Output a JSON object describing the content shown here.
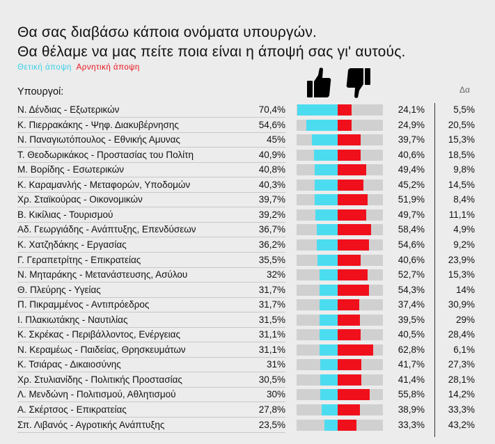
{
  "header": {
    "title_line1": "Θα σας διαβάσω κάποια ονόματα υπουργών.",
    "title_line2": "Θα θέλαμε να μας πείτε ποια είναι η άποψή σας γι' αυτούς.",
    "legend_positive": "Θετική άποψη",
    "legend_negative": "Αρνητική άποψη",
    "column_label": "Υπουργοί:",
    "delta_label": "Δα"
  },
  "colors": {
    "positive": "#4cdcf0",
    "negative": "#f0101c",
    "track": "#d0d0d0"
  },
  "icons": {
    "positive": "thumbs-up-icon",
    "negative": "thumbs-down-icon"
  },
  "chart_data": {
    "type": "bar",
    "series": [
      {
        "name": "Θετική άποψη",
        "values": [
          70.4,
          54.6,
          45,
          40.9,
          40.8,
          40.3,
          39.7,
          39.2,
          36.7,
          36.2,
          35.5,
          32,
          31.7,
          31.7,
          31.5,
          31.1,
          31.1,
          31,
          30.5,
          30,
          27.8,
          23.5
        ]
      },
      {
        "name": "Αρνητική άποψη",
        "values": [
          24.1,
          24.9,
          39.7,
          40.6,
          49.4,
          45.2,
          51.9,
          49.7,
          58.4,
          54.6,
          40.6,
          52.7,
          54.3,
          37.4,
          39.5,
          40.5,
          62.8,
          41.7,
          41.4,
          55.8,
          38.9,
          33.3
        ]
      },
      {
        "name": "Δα",
        "values": [
          5.5,
          20.5,
          15.3,
          18.5,
          9.8,
          14.5,
          8.4,
          11.1,
          4.9,
          9.2,
          23.9,
          15.3,
          14,
          30.9,
          29,
          28.4,
          6.1,
          27.3,
          28.1,
          14.2,
          33.3,
          43.2
        ]
      }
    ],
    "rows": [
      {
        "name": "Ν. Δένδιας - Εξωτερικών",
        "pos": "70,4%",
        "neg": "24,1%",
        "dk": "5,5%",
        "pos_val": 70.4,
        "neg_val": 24.1
      },
      {
        "name": "Κ. Πιερρακάκης - Ψηφ. Διακυβέρνησης",
        "pos": "54,6%",
        "neg": "24,9%",
        "dk": "20,5%",
        "pos_val": 54.6,
        "neg_val": 24.9
      },
      {
        "name": "Ν. Παναγιωτόπουλος - Εθνικής Αμυνας",
        "pos": "45%",
        "neg": "39,7%",
        "dk": "15,3%",
        "pos_val": 45,
        "neg_val": 39.7
      },
      {
        "name": "Τ. Θεοδωρικάκος - Προστασίας του Πολίτη",
        "pos": "40,9%",
        "neg": "40,6%",
        "dk": "18,5%",
        "pos_val": 40.9,
        "neg_val": 40.6
      },
      {
        "name": "Μ. Βορίδης - Εσωτερικών",
        "pos": "40,8%",
        "neg": "49,4%",
        "dk": "9,8%",
        "pos_val": 40.8,
        "neg_val": 49.4
      },
      {
        "name": "Κ. Καραμανλής - Μεταφορών, Υποδομών",
        "pos": "40,3%",
        "neg": "45,2%",
        "dk": "14,5%",
        "pos_val": 40.3,
        "neg_val": 45.2
      },
      {
        "name": "Χρ. Σταϊκούρας - Οικονομικών",
        "pos": "39,7%",
        "neg": "51,9%",
        "dk": "8,4%",
        "pos_val": 39.7,
        "neg_val": 51.9
      },
      {
        "name": "Β. Κικίλιας - Τουρισμού",
        "pos": "39,2%",
        "neg": "49,7%",
        "dk": "11,1%",
        "pos_val": 39.2,
        "neg_val": 49.7
      },
      {
        "name": "Αδ. Γεωργιάδης - Ανάπτυξης, Επενδύσεων",
        "pos": "36,7%",
        "neg": "58,4%",
        "dk": "4,9%",
        "pos_val": 36.7,
        "neg_val": 58.4
      },
      {
        "name": "Κ. Χατζηδάκης - Εργασίας",
        "pos": "36,2%",
        "neg": "54,6%",
        "dk": "9,2%",
        "pos_val": 36.2,
        "neg_val": 54.6
      },
      {
        "name": "Γ. Γεραπετρίτης - Επικρατείας",
        "pos": "35,5%",
        "neg": "40,6%",
        "dk": "23,9%",
        "pos_val": 35.5,
        "neg_val": 40.6
      },
      {
        "name": "Ν. Μηταράκης - Μετανάστευσης, Ασύλου",
        "pos": "32%",
        "neg": "52,7%",
        "dk": "15,3%",
        "pos_val": 32,
        "neg_val": 52.7
      },
      {
        "name": "Θ. Πλεύρης - Υγείας",
        "pos": "31,7%",
        "neg": "54,3%",
        "dk": "14%",
        "pos_val": 31.7,
        "neg_val": 54.3
      },
      {
        "name": "Π. Πικραμμένος - Αντιπρόεδρος",
        "pos": "31,7%",
        "neg": "37,4%",
        "dk": "30,9%",
        "pos_val": 31.7,
        "neg_val": 37.4
      },
      {
        "name": "Ι. Πλακιωτάκης - Ναυτιλίας",
        "pos": "31,5%",
        "neg": "39,5%",
        "dk": "29%",
        "pos_val": 31.5,
        "neg_val": 39.5
      },
      {
        "name": "Κ. Σκρέκας - Περιβάλλοντος, Ενέργειας",
        "pos": "31,1%",
        "neg": "40,5%",
        "dk": "28,4%",
        "pos_val": 31.1,
        "neg_val": 40.5
      },
      {
        "name": "Ν. Κεραμέως - Παιδείας, Θρησκευμάτων",
        "pos": "31,1%",
        "neg": "62,8%",
        "dk": "6,1%",
        "pos_val": 31.1,
        "neg_val": 62.8
      },
      {
        "name": "Κ. Τσιάρας - Δικαιοσύνης",
        "pos": "31%",
        "neg": "41,7%",
        "dk": "27,3%",
        "pos_val": 31,
        "neg_val": 41.7
      },
      {
        "name": "Χρ. Στυλιανίδης - Πολιτικής Προστασίας",
        "pos": "30,5%",
        "neg": "41,4%",
        "dk": "28,1%",
        "pos_val": 30.5,
        "neg_val": 41.4
      },
      {
        "name": "Λ. Μενδώνη - Πολιτισμού, Αθλητισμού",
        "pos": "30%",
        "neg": "55,8%",
        "dk": "14,2%",
        "pos_val": 30,
        "neg_val": 55.8
      },
      {
        "name": "Α. Σκέρτσος - Επικρατείας",
        "pos": "27,8%",
        "neg": "38,9%",
        "dk": "33,3%",
        "pos_val": 27.8,
        "neg_val": 38.9
      },
      {
        "name": "Σπ. Λιβανός - Αγροτικής Ανάπτυξης",
        "pos": "23,5%",
        "neg": "33,3%",
        "dk": "43,2%",
        "pos_val": 23.5,
        "neg_val": 33.3
      }
    ]
  }
}
